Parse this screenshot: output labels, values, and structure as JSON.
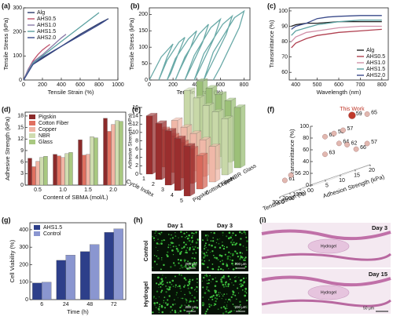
{
  "chart_data": [
    {
      "type": "line",
      "panel_label": "(a)",
      "xlabel": "Tensile Strain (%)",
      "ylabel": "Tensile Stress (kPa)",
      "xlim": [
        0,
        1000
      ],
      "xticks": [
        0,
        200,
        400,
        600,
        800,
        1000
      ],
      "ylim": [
        0,
        300
      ],
      "yticks": [
        0,
        100,
        200,
        300
      ],
      "legend": "upper left",
      "series": [
        {
          "name": "Alg",
          "color": "#2b3a6b",
          "x": [
            0,
            50,
            100,
            200,
            400,
            600,
            800,
            900
          ],
          "values": [
            0,
            40,
            65,
            90,
            140,
            190,
            235,
            255
          ]
        },
        {
          "name": "AHS0.5",
          "color": "#c0506a",
          "x": [
            0,
            50,
            100,
            150,
            200,
            250,
            280
          ],
          "values": [
            0,
            45,
            80,
            105,
            125,
            140,
            148
          ]
        },
        {
          "name": "AHS1.0",
          "color": "#8a7aa8",
          "x": [
            0,
            50,
            100,
            200,
            300,
            400,
            450
          ],
          "values": [
            0,
            45,
            75,
            105,
            140,
            175,
            190
          ]
        },
        {
          "name": "AHS1.5",
          "color": "#5aa0a0",
          "x": [
            0,
            100,
            200,
            400,
            600,
            800
          ],
          "values": [
            0,
            70,
            100,
            160,
            220,
            280
          ]
        },
        {
          "name": "AHS2.0",
          "color": "#3a4a8a",
          "x": [
            0,
            100,
            200,
            400,
            600,
            800,
            880
          ],
          "values": [
            0,
            65,
            95,
            140,
            185,
            230,
            250
          ]
        }
      ]
    },
    {
      "type": "line",
      "panel_label": "(b)",
      "xlabel": "Tensile Strain (%)",
      "ylabel": "Tensile Stress (kPa)",
      "xlim": [
        0,
        850
      ],
      "xticks": [
        0,
        200,
        400,
        600,
        800
      ],
      "ylim": [
        0,
        220
      ],
      "yticks": [
        0,
        50,
        100,
        150,
        200
      ],
      "series": [
        {
          "name": null,
          "color": "#6aaaa8",
          "x": [
            0,
            100,
            200,
            150,
            100,
            80,
            150,
            250,
            300,
            250,
            180,
            150,
            220,
            330,
            400,
            350,
            250,
            220,
            300,
            420,
            500,
            450,
            340,
            300,
            380,
            520,
            600,
            550,
            420,
            380,
            460,
            620,
            700,
            650,
            500,
            460,
            540,
            720,
            800,
            760,
            600,
            540
          ],
          "values": [
            0,
            70,
            110,
            70,
            20,
            0,
            60,
            115,
            130,
            85,
            20,
            0,
            65,
            125,
            150,
            100,
            25,
            0,
            70,
            140,
            170,
            115,
            30,
            0,
            75,
            160,
            185,
            130,
            30,
            0,
            80,
            170,
            195,
            140,
            30,
            0,
            85,
            190,
            210,
            160,
            40,
            0
          ]
        }
      ]
    },
    {
      "type": "line",
      "panel_label": "(c)",
      "xlabel": "Wavelength (nm)",
      "ylabel": "Transmittance (%)",
      "xlim": [
        370,
        830
      ],
      "xticks": [
        400,
        500,
        600,
        700,
        800
      ],
      "ylim": [
        55,
        102
      ],
      "yticks": [
        60,
        70,
        80,
        90,
        100
      ],
      "legend": "lower right",
      "series": [
        {
          "name": "Alg",
          "color": "#222222",
          "x": [
            380,
            400,
            450,
            500,
            550,
            600,
            700,
            800
          ],
          "values": [
            90,
            91,
            92,
            92,
            92.5,
            93,
            93,
            93
          ]
        },
        {
          "name": "AHS0.5",
          "color": "#b04050",
          "x": [
            380,
            400,
            450,
            500,
            550,
            600,
            700,
            800
          ],
          "values": [
            76,
            79,
            82,
            84,
            85,
            86,
            87,
            88
          ]
        },
        {
          "name": "AHS1.0",
          "color": "#d090a8",
          "x": [
            380,
            400,
            450,
            500,
            550,
            600,
            700,
            800
          ],
          "values": [
            80,
            83,
            86,
            87,
            88,
            89,
            90,
            90
          ]
        },
        {
          "name": "AHS1.5",
          "color": "#5aa0a0",
          "x": [
            380,
            400,
            450,
            500,
            550,
            600,
            700,
            800
          ],
          "values": [
            84,
            87,
            89,
            91,
            92,
            93,
            94,
            94
          ]
        },
        {
          "name": "AHS2.0",
          "color": "#3a4a8a",
          "x": [
            380,
            400,
            450,
            500,
            550,
            600,
            700,
            800
          ],
          "values": [
            88,
            90,
            92,
            95,
            96,
            96.5,
            97,
            97
          ]
        }
      ]
    },
    {
      "type": "bar",
      "panel_label": "(d)",
      "xlabel": "Content of SBMA (mol/L)",
      "ylabel": "Adhesive Strength (kPa)",
      "categories": [
        "0.5",
        "1.0",
        "1.5",
        "2.0"
      ],
      "ylim": [
        0,
        19
      ],
      "yticks": [
        0,
        3,
        6,
        9,
        12,
        15,
        18
      ],
      "legend": "upper left",
      "series": [
        {
          "name": "Pigskin",
          "color": "#8b2a2a",
          "values": [
            7,
            8,
            11.8,
            17.4
          ]
        },
        {
          "name": "Cotton Fiber",
          "color": "#e07060",
          "values": [
            4.8,
            7.6,
            7.8,
            14
          ]
        },
        {
          "name": "Copper",
          "color": "#f0b4a4",
          "values": [
            6.2,
            7.2,
            8,
            15.8
          ]
        },
        {
          "name": "NBR",
          "color": "#cfdcb0",
          "values": [
            7.2,
            8.2,
            12.6,
            16.8
          ]
        },
        {
          "name": "Glass",
          "color": "#a8c880",
          "values": [
            7.5,
            8.5,
            12.3,
            16.6
          ]
        }
      ]
    },
    {
      "type": "bar3d",
      "panel_label": "(e)",
      "xlabel": "Cycle Index",
      "zlabel": "Adhesive Strength (kPa)",
      "categories": [
        1,
        2,
        3,
        4,
        5
      ],
      "zlim": [
        0,
        16
      ],
      "zticks": [
        0,
        2,
        4,
        6,
        8,
        10,
        12,
        14,
        16
      ],
      "series": [
        {
          "name": "Pigskin",
          "color": "#9a2e2e",
          "values": [
            14,
            13.5,
            13,
            12.5,
            12
          ]
        },
        {
          "name": "Cotton Fiber",
          "color": "#d86a5c",
          "values": [
            9,
            8.8,
            8.5,
            8.3,
            8
          ]
        },
        {
          "name": "Copper",
          "color": "#f0b8a8",
          "values": [
            9.5,
            9.2,
            9,
            8.8,
            8.5
          ]
        },
        {
          "name": "NBR",
          "color": "#c8d8a8",
          "values": [
            15,
            14.5,
            14,
            13.8,
            13.5
          ]
        },
        {
          "name": "Glass",
          "color": "#9cc078",
          "values": [
            15.5,
            15.2,
            15,
            14.8,
            14.5
          ]
        }
      ]
    },
    {
      "type": "scatter3d",
      "panel_label": "(f)",
      "xlabel": "Tensile Strain (%)",
      "ylabel": "Adhesion Strength (kPa)",
      "zlabel": "Transmittance (%)",
      "xlim": [
        0,
        3000
      ],
      "xticks": [
        0,
        1000,
        2000,
        3000
      ],
      "ylim": [
        0,
        20
      ],
      "yticks": [
        0,
        5,
        10,
        15,
        20
      ],
      "zlim": [
        0,
        100
      ],
      "zticks": [
        0,
        20,
        40,
        60,
        80,
        100
      ],
      "x": [
        900,
        300,
        1500,
        1200,
        900,
        1000,
        800,
        1500,
        500,
        300,
        2800,
        2500
      ],
      "y": [
        17,
        20,
        10,
        12,
        14,
        13,
        15,
        10,
        17,
        20,
        1,
        2
      ],
      "z": [
        95,
        88,
        75,
        75,
        75,
        55,
        48,
        45,
        35,
        38,
        25,
        30
      ],
      "point_labels": [
        "59",
        "65",
        "60",
        "58",
        "57",
        "64",
        "62",
        "63",
        "66",
        "57",
        "61",
        "56"
      ],
      "highlight_label": "This Work",
      "highlight_index": 0,
      "highlight_color": "#c0392b",
      "color": "#e2b8b0"
    },
    {
      "type": "bar",
      "panel_label": "(g)",
      "xlabel": "Time (h)",
      "ylabel": "Cell Viability (%)",
      "categories": [
        6,
        24,
        48,
        72
      ],
      "ylim": [
        0,
        440
      ],
      "yticks": [
        0,
        100,
        200,
        300,
        400
      ],
      "legend": "upper left",
      "series": [
        {
          "name": "AHS1.5",
          "color": "#2d3f8a",
          "values": [
            95,
            225,
            275,
            385
          ]
        },
        {
          "name": "Control",
          "color": "#8a96d0",
          "values": [
            100,
            255,
            315,
            405
          ]
        }
      ]
    }
  ],
  "micrographs": {
    "panel_label": "(h)",
    "columns": [
      "Day 1",
      "Day 3"
    ],
    "rows": [
      "Control",
      "Hydrogel"
    ],
    "scale_bars": [
      "200 μm",
      "200 μm",
      "200 μm",
      "200 μm"
    ]
  },
  "histology": {
    "panel_label": "(i)",
    "images": [
      {
        "day": "Day 3",
        "tissue": "Hydrogel"
      },
      {
        "day": "Day 15",
        "tissue": "Hydrogel"
      }
    ],
    "scale_bar": "50 μm"
  }
}
